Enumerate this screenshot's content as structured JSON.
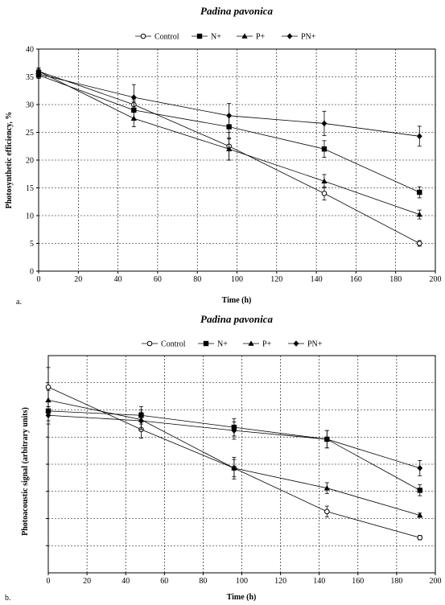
{
  "chart_data": [
    {
      "type": "line",
      "panel_label": "a.",
      "title": "Padina pavonica",
      "xlabel": "Time (h)",
      "ylabel": "Photosynthetic efficiency, %",
      "xlim": [
        0,
        200
      ],
      "ylim": [
        0,
        40
      ],
      "xticks": [
        "0",
        "20",
        "40",
        "60",
        "80",
        "100",
        "120",
        "140",
        "160",
        "180",
        "200"
      ],
      "yticks": [
        "0",
        "5",
        "10",
        "15",
        "20",
        "25",
        "30",
        "35",
        "40"
      ],
      "grid": true,
      "legend_position": "top",
      "x": [
        0,
        48,
        96,
        144,
        192
      ],
      "series": [
        {
          "name": "Control",
          "marker": "circle-open",
          "values": [
            36.0,
            30.0,
            22.5,
            14.0,
            5.0
          ],
          "errors": [
            0.6,
            1.0,
            2.5,
            1.2,
            0.5
          ]
        },
        {
          "name": "N+",
          "marker": "square",
          "values": [
            35.3,
            29.0,
            26.0,
            22.0,
            14.2
          ],
          "errors": [
            0.6,
            1.6,
            2.2,
            1.5,
            1.0
          ]
        },
        {
          "name": "P+",
          "marker": "triangle",
          "values": [
            36.0,
            27.5,
            22.0,
            16.2,
            10.2
          ],
          "errors": [
            0.6,
            1.5,
            2.0,
            1.2,
            0.8
          ]
        },
        {
          "name": "PN+",
          "marker": "diamond",
          "values": [
            35.5,
            31.3,
            28.0,
            26.6,
            24.3
          ],
          "errors": [
            0.6,
            2.3,
            2.2,
            2.2,
            1.8
          ]
        }
      ]
    },
    {
      "type": "line",
      "panel_label": "b.",
      "title": "Padina pavonica",
      "xlabel": "Time (h)",
      "ylabel": "Photoacoustic signal (arbitrary units)",
      "xlim": [
        0,
        200
      ],
      "ylim": [
        0,
        10
      ],
      "xticks": [
        "0",
        "20",
        "40",
        "60",
        "80",
        "100",
        "120",
        "140",
        "160",
        "180",
        "200"
      ],
      "yticks": [],
      "grid": true,
      "legend_position": "top",
      "x": [
        0,
        48,
        96,
        144,
        192
      ],
      "series": [
        {
          "name": "Control",
          "marker": "circle-open",
          "values": [
            8.55,
            6.6,
            4.82,
            2.82,
            1.62
          ],
          "errors": [
            0.9,
            0.4,
            0.5,
            0.25,
            0.1
          ]
        },
        {
          "name": "N+",
          "marker": "square",
          "values": [
            7.45,
            7.25,
            6.7,
            6.15,
            3.8
          ],
          "errors": [
            0.45,
            0.4,
            0.4,
            0.4,
            0.25
          ]
        },
        {
          "name": "P+",
          "marker": "triangle",
          "values": [
            7.95,
            7.05,
            4.82,
            3.9,
            2.65
          ],
          "errors": [
            0.45,
            0.45,
            0.4,
            0.25,
            0.1
          ]
        },
        {
          "name": "PN+",
          "marker": "diamond",
          "values": [
            7.25,
            7.0,
            6.55,
            6.15,
            4.82
          ],
          "errors": [
            0.4,
            0.4,
            0.4,
            0.4,
            0.35
          ]
        }
      ]
    }
  ]
}
